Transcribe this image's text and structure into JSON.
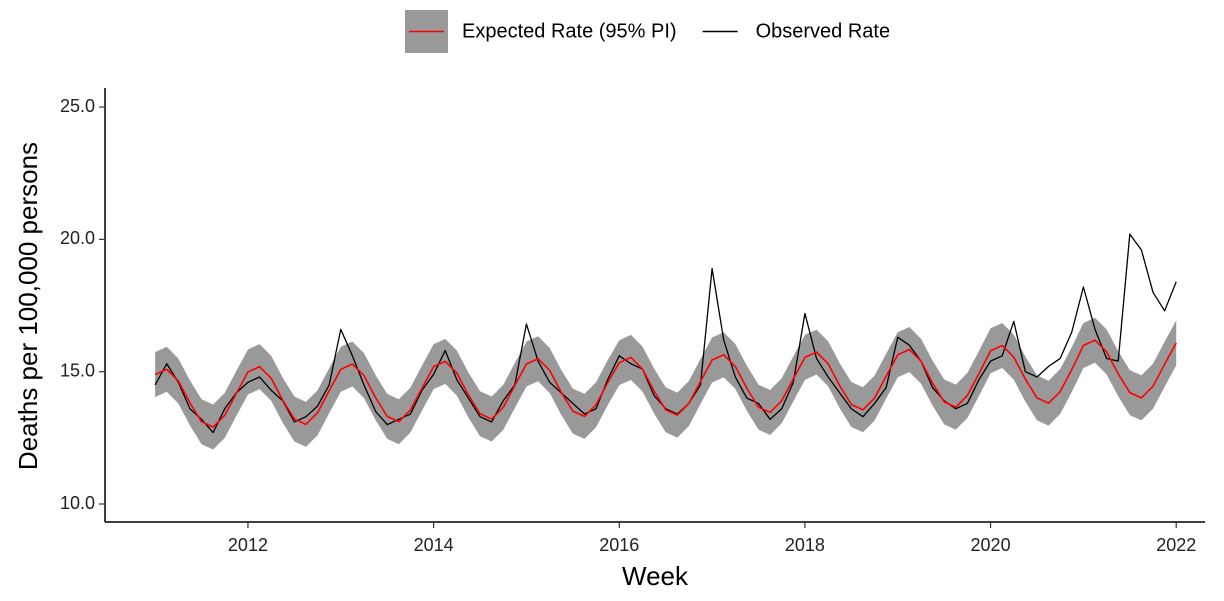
{
  "chart_data": {
    "type": "line",
    "y_label": "Deaths per 100,000 persons",
    "x_label": "Week",
    "x": [
      2011,
      2011.125,
      2011.25,
      2011.375,
      2011.5,
      2011.625,
      2011.75,
      2011.875,
      2012,
      2012.125,
      2012.25,
      2012.375,
      2012.5,
      2012.625,
      2012.75,
      2012.875,
      2013,
      2013.125,
      2013.25,
      2013.375,
      2013.5,
      2013.625,
      2013.75,
      2013.875,
      2014,
      2014.125,
      2014.25,
      2014.375,
      2014.5,
      2014.625,
      2014.75,
      2014.875,
      2015,
      2015.125,
      2015.25,
      2015.375,
      2015.5,
      2015.625,
      2015.75,
      2015.875,
      2016,
      2016.125,
      2016.25,
      2016.375,
      2016.5,
      2016.625,
      2016.75,
      2016.875,
      2017,
      2017.125,
      2017.25,
      2017.375,
      2017.5,
      2017.625,
      2017.75,
      2017.875,
      2018,
      2018.125,
      2018.25,
      2018.375,
      2018.5,
      2018.625,
      2018.75,
      2018.875,
      2019,
      2019.125,
      2019.25,
      2019.375,
      2019.5,
      2019.625,
      2019.75,
      2019.875,
      2020,
      2020.125,
      2020.25,
      2020.375,
      2020.5,
      2020.625,
      2020.75,
      2020.875,
      2021,
      2021.125,
      2021.25,
      2021.375,
      2021.5,
      2021.625,
      2021.75,
      2021.875,
      2022
    ],
    "series": [
      {
        "name": "Expected Rate (95% PI)",
        "color": "#ff0000",
        "band_color": "#999999",
        "values": [
          14.89,
          15.09,
          14.65,
          13.82,
          13.11,
          12.91,
          13.35,
          14.18,
          14.99,
          15.19,
          14.75,
          13.92,
          13.21,
          13.01,
          13.45,
          14.28,
          15.09,
          15.29,
          14.85,
          14.02,
          13.31,
          13.11,
          13.55,
          14.38,
          15.19,
          15.39,
          14.95,
          14.12,
          13.41,
          13.21,
          13.65,
          14.48,
          15.29,
          15.49,
          15.05,
          14.22,
          13.51,
          13.31,
          13.75,
          14.58,
          15.34,
          15.54,
          15.1,
          14.27,
          13.56,
          13.36,
          13.8,
          14.63,
          15.44,
          15.64,
          15.2,
          14.37,
          13.66,
          13.46,
          13.9,
          14.73,
          15.54,
          15.74,
          15.3,
          14.47,
          13.76,
          13.56,
          14.0,
          14.83,
          15.64,
          15.84,
          15.4,
          14.57,
          13.86,
          13.66,
          14.1,
          14.93,
          15.79,
          15.99,
          15.55,
          14.72,
          14.01,
          13.81,
          14.25,
          15.08,
          15.99,
          16.19,
          15.75,
          14.92,
          14.21,
          14.01,
          14.45,
          15.28,
          16.09
        ],
        "lower": [
          14.04,
          14.24,
          13.8,
          12.97,
          12.26,
          12.06,
          12.5,
          13.33,
          14.14,
          14.34,
          13.9,
          13.07,
          12.36,
          12.16,
          12.6,
          13.43,
          14.24,
          14.44,
          14.0,
          13.17,
          12.46,
          12.26,
          12.7,
          13.53,
          14.34,
          14.54,
          14.1,
          13.27,
          12.56,
          12.36,
          12.8,
          13.63,
          14.44,
          14.64,
          14.2,
          13.37,
          12.66,
          12.46,
          12.9,
          13.73,
          14.49,
          14.69,
          14.25,
          13.42,
          12.71,
          12.51,
          12.95,
          13.78,
          14.59,
          14.79,
          14.35,
          13.52,
          12.81,
          12.61,
          13.05,
          13.88,
          14.69,
          14.89,
          14.45,
          13.62,
          12.91,
          12.71,
          13.15,
          13.98,
          14.79,
          14.99,
          14.55,
          13.72,
          13.01,
          12.81,
          13.25,
          14.08,
          14.94,
          15.14,
          14.7,
          13.87,
          13.16,
          12.96,
          13.4,
          14.23,
          15.14,
          15.34,
          14.9,
          14.07,
          13.36,
          13.16,
          13.6,
          14.43,
          15.24
        ],
        "upper": [
          15.74,
          15.94,
          15.5,
          14.67,
          13.96,
          13.76,
          14.2,
          15.03,
          15.84,
          16.04,
          15.6,
          14.77,
          14.06,
          13.86,
          14.3,
          15.13,
          15.94,
          16.14,
          15.7,
          14.87,
          14.16,
          13.96,
          14.4,
          15.23,
          16.04,
          16.24,
          15.8,
          14.97,
          14.26,
          14.06,
          14.5,
          15.33,
          16.14,
          16.34,
          15.9,
          15.07,
          14.36,
          14.16,
          14.6,
          15.43,
          16.19,
          16.39,
          15.95,
          15.12,
          14.41,
          14.21,
          14.65,
          15.48,
          16.29,
          16.49,
          16.05,
          15.22,
          14.51,
          14.31,
          14.75,
          15.58,
          16.39,
          16.59,
          16.15,
          15.32,
          14.61,
          14.41,
          14.85,
          15.68,
          16.49,
          16.69,
          16.25,
          15.42,
          14.71,
          14.51,
          14.95,
          15.78,
          16.64,
          16.84,
          16.4,
          15.57,
          14.86,
          14.66,
          15.1,
          15.93,
          16.84,
          17.04,
          16.6,
          15.77,
          15.06,
          14.86,
          15.3,
          16.13,
          16.94
        ]
      },
      {
        "name": "Observed Rate",
        "color": "#000000",
        "values": [
          14.5,
          15.3,
          14.6,
          13.6,
          13.2,
          12.7,
          13.6,
          14.2,
          14.6,
          14.8,
          14.3,
          13.9,
          13.1,
          13.3,
          13.7,
          14.5,
          16.6,
          15.6,
          14.5,
          13.5,
          13.0,
          13.2,
          13.4,
          14.3,
          14.9,
          15.8,
          14.7,
          14.0,
          13.3,
          13.1,
          13.9,
          14.5,
          16.8,
          15.4,
          14.6,
          14.2,
          13.8,
          13.4,
          13.6,
          14.7,
          15.6,
          15.3,
          15.1,
          14.1,
          13.6,
          13.4,
          13.8,
          14.5,
          18.9,
          16.2,
          14.8,
          14.0,
          13.8,
          13.2,
          13.6,
          14.6,
          17.2,
          15.5,
          14.8,
          14.2,
          13.6,
          13.3,
          13.8,
          14.4,
          16.3,
          16.0,
          15.4,
          14.4,
          13.9,
          13.6,
          13.8,
          14.7,
          15.4,
          15.6,
          16.9,
          15.0,
          14.8,
          15.2,
          15.5,
          16.5,
          18.2,
          16.6,
          15.5,
          15.4,
          20.2,
          19.6,
          18.0,
          17.3,
          18.4
        ]
      }
    ],
    "xlim": [
      2010.46,
      2022.31
    ],
    "xticks": [
      2012,
      2014,
      2016,
      2018,
      2020,
      2022
    ],
    "ylim": [
      9.32,
      25.72
    ],
    "yticks": [
      {
        "value": 10,
        "label": "10.0"
      },
      {
        "value": 15,
        "label": "15.0"
      },
      {
        "value": 20,
        "label": "20.0"
      },
      {
        "value": 25,
        "label": "25.0"
      }
    ],
    "grid": false,
    "legend": "top"
  }
}
